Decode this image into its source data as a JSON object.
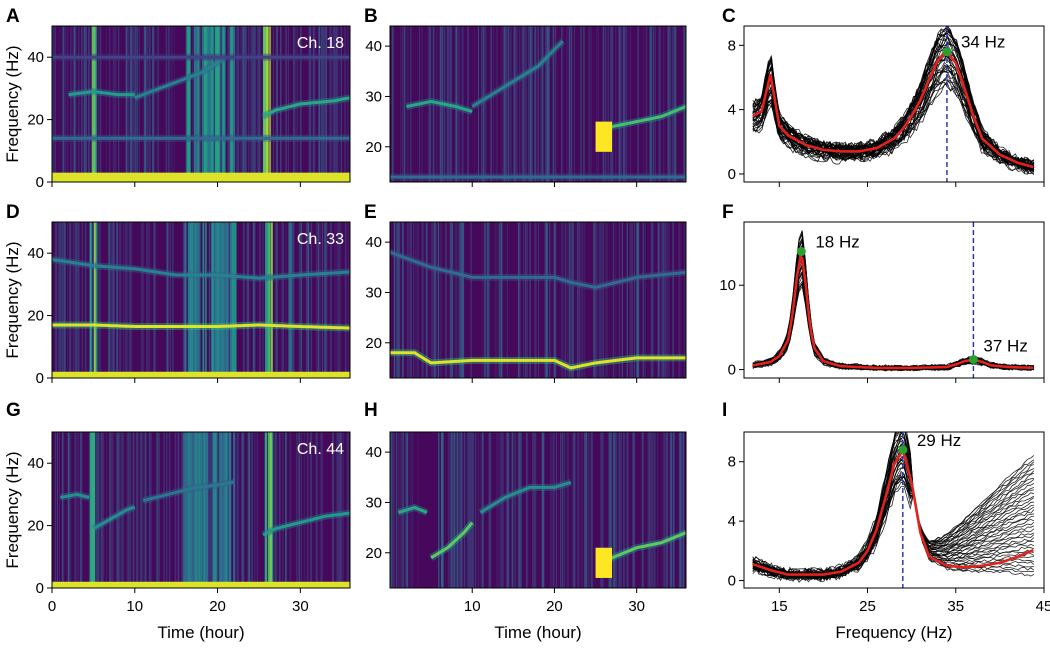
{
  "chart_data": [
    {
      "panel": "A",
      "type": "heatmap",
      "channel_label": "Ch. 18",
      "xlabel": "",
      "ylabel": "Frequency (Hz)",
      "xlim": [
        0,
        36
      ],
      "ylim": [
        0,
        50
      ],
      "xticks": [
        0,
        10,
        20,
        30
      ],
      "yticks": [
        0,
        20,
        40
      ],
      "xticklabels": [],
      "yticklabels": [
        "0",
        "20",
        "40"
      ],
      "colormap": "viridis",
      "ridges": [
        {
          "x": [
            2,
            5,
            8,
            10
          ],
          "y": [
            28,
            29,
            28,
            28
          ],
          "intensity": 0.55
        },
        {
          "x": [
            10,
            14,
            18,
            21
          ],
          "y": [
            27,
            31,
            35,
            40
          ],
          "intensity": 0.45
        },
        {
          "x": [
            25.5,
            27,
            30,
            34,
            36
          ],
          "y": [
            21,
            23,
            25,
            26,
            27
          ],
          "intensity": 0.6
        },
        {
          "x": [
            0,
            36
          ],
          "y": [
            14,
            14
          ],
          "intensity": 0.35
        },
        {
          "x": [
            0,
            36
          ],
          "y": [
            40,
            40
          ],
          "intensity": 0.2
        }
      ],
      "bright_bands": [
        {
          "x": [
            25.3,
            26.8
          ],
          "intensity": 1.0
        },
        {
          "x": [
            16,
            22
          ],
          "intensity": 0.6
        },
        {
          "x": [
            4.6,
            5.1
          ],
          "intensity": 0.9
        }
      ],
      "floor_band": {
        "y": [
          0,
          3
        ],
        "intensity": 0.95
      }
    },
    {
      "panel": "B",
      "type": "heatmap",
      "xlabel": "",
      "ylabel": "",
      "xlim": [
        0,
        36
      ],
      "ylim": [
        13,
        44
      ],
      "xticks": [
        10,
        20,
        30
      ],
      "yticks": [
        20,
        30,
        40
      ],
      "xticklabels": [],
      "yticklabels": [
        "20",
        "30",
        "40"
      ],
      "colormap": "viridis",
      "ridges": [
        {
          "x": [
            2,
            5,
            8,
            10
          ],
          "y": [
            28,
            29,
            28,
            27
          ],
          "intensity": 0.6
        },
        {
          "x": [
            10,
            14,
            18,
            21
          ],
          "y": [
            28,
            32,
            36,
            41
          ],
          "intensity": 0.45
        },
        {
          "x": [
            25.5,
            27,
            30,
            33,
            36
          ],
          "y": [
            21,
            24,
            25,
            26,
            28
          ],
          "intensity": 0.7
        },
        {
          "x": [
            0,
            36
          ],
          "y": [
            14,
            14
          ],
          "intensity": 0.35
        }
      ],
      "bright_blobs": [
        {
          "x": 26,
          "y": 22,
          "w": 2,
          "h": 6,
          "intensity": 1.0
        }
      ],
      "bright_bands": []
    },
    {
      "panel": "C",
      "type": "line",
      "peak_label": "34 Hz",
      "xlabel": "",
      "ylabel": "",
      "xlim": [
        11,
        45
      ],
      "ylim": [
        -0.5,
        9.2
      ],
      "xticks": [
        15,
        25,
        35,
        45
      ],
      "yticks": [
        0,
        4,
        8
      ],
      "xticklabels": [],
      "yticklabels": [
        "0",
        "4",
        "8"
      ],
      "vline": 34,
      "peak": {
        "x": 34,
        "y": 7.6
      },
      "mean_curve": {
        "x": [
          12,
          13,
          14,
          15,
          16,
          18,
          20,
          22,
          24,
          26,
          28,
          29,
          30,
          31,
          32,
          33,
          34,
          35,
          36,
          37,
          38,
          40,
          42,
          44
        ],
        "y": [
          3.6,
          3.9,
          6.2,
          3.0,
          2.4,
          1.8,
          1.5,
          1.4,
          1.4,
          1.6,
          2.2,
          2.8,
          3.6,
          4.6,
          5.9,
          7.1,
          7.6,
          6.9,
          5.3,
          3.6,
          2.2,
          1.2,
          0.7,
          0.4
        ]
      },
      "series_count": 40,
      "series_spread": 1.1,
      "colors": {
        "traces": "#000000",
        "mean": "#e3211d",
        "vline": "#1f2ea8",
        "peak": "#2ca02c"
      }
    },
    {
      "panel": "D",
      "type": "heatmap",
      "channel_label": "Ch. 33",
      "xlabel": "",
      "ylabel": "Frequency (Hz)",
      "xlim": [
        0,
        36
      ],
      "ylim": [
        0,
        50
      ],
      "xticks": [
        0,
        10,
        20,
        30
      ],
      "yticks": [
        0,
        20,
        40
      ],
      "xticklabels": [],
      "yticklabels": [
        "0",
        "20",
        "40"
      ],
      "colormap": "viridis",
      "ridges": [
        {
          "x": [
            0,
            5,
            10,
            15,
            20,
            25,
            30,
            36
          ],
          "y": [
            17,
            17,
            16.5,
            16.5,
            16.5,
            17,
            16.5,
            16
          ],
          "intensity": 0.95
        },
        {
          "x": [
            0,
            5,
            10,
            15,
            20,
            25,
            30,
            36
          ],
          "y": [
            38,
            36,
            35,
            33,
            33,
            32,
            33,
            34
          ],
          "intensity": 0.45
        }
      ],
      "bright_bands": [
        {
          "x": [
            4.5,
            5.2
          ],
          "intensity": 0.9
        },
        {
          "x": [
            16,
            22
          ],
          "intensity": 0.55
        },
        {
          "x": [
            25.5,
            26.5
          ],
          "intensity": 0.85
        }
      ],
      "floor_band": {
        "y": [
          0,
          2
        ],
        "intensity": 0.95
      }
    },
    {
      "panel": "E",
      "type": "heatmap",
      "xlabel": "",
      "ylabel": "",
      "xlim": [
        0,
        36
      ],
      "ylim": [
        13,
        44
      ],
      "xticks": [
        10,
        20,
        30
      ],
      "yticks": [
        20,
        30,
        40
      ],
      "xticklabels": [],
      "yticklabels": [
        "20",
        "30",
        "40"
      ],
      "colormap": "viridis",
      "ridges": [
        {
          "x": [
            0,
            3,
            5,
            10,
            15,
            20,
            22,
            25,
            30,
            36
          ],
          "y": [
            18,
            18,
            16,
            16.5,
            16.5,
            16.5,
            15,
            16,
            17,
            17
          ],
          "intensity": 0.95
        },
        {
          "x": [
            0,
            5,
            10,
            15,
            20,
            22,
            25,
            30,
            36
          ],
          "y": [
            38,
            35,
            33,
            33,
            33,
            32,
            31,
            33,
            34
          ],
          "intensity": 0.35
        }
      ],
      "bright_blobs": [],
      "bright_bands": []
    },
    {
      "panel": "F",
      "type": "line",
      "peak_label": "18 Hz",
      "peak_label_2": "37 Hz",
      "xlabel": "",
      "ylabel": "",
      "xlim": [
        11,
        45
      ],
      "ylim": [
        -1,
        17.5
      ],
      "xticks": [
        15,
        25,
        35,
        45
      ],
      "yticks": [
        0,
        10
      ],
      "xticklabels": [],
      "yticklabels": [
        "0",
        "10"
      ],
      "vline": 37,
      "peak": {
        "x": 17.5,
        "y": 14
      },
      "peak2": {
        "x": 37,
        "y": 1.2
      },
      "mean_curve": {
        "x": [
          12,
          14,
          15,
          16,
          16.5,
          17,
          17.5,
          18,
          18.5,
          19,
          20,
          22,
          26,
          30,
          34,
          35,
          36,
          37,
          38,
          39,
          41,
          44
        ],
        "y": [
          0.5,
          0.9,
          1.6,
          3.5,
          6.5,
          11,
          14,
          10,
          5,
          2.5,
          1.0,
          0.4,
          0.2,
          0.2,
          0.3,
          0.6,
          1.0,
          1.2,
          0.9,
          0.5,
          0.3,
          0.2
        ]
      },
      "series_count": 35,
      "series_spread": 0.8,
      "colors": {
        "traces": "#000000",
        "mean": "#e3211d",
        "vline": "#1f2ea8",
        "peak": "#2ca02c"
      }
    },
    {
      "panel": "G",
      "type": "heatmap",
      "channel_label": "Ch. 44",
      "xlabel": "Time (hour)",
      "ylabel": "Frequency (Hz)",
      "xlim": [
        0,
        36
      ],
      "ylim": [
        0,
        50
      ],
      "xticks": [
        0,
        10,
        20,
        30
      ],
      "yticks": [
        0,
        20,
        40
      ],
      "xticklabels": [
        "0",
        "10",
        "20",
        "30"
      ],
      "yticklabels": [
        "0",
        "20",
        "40"
      ],
      "colormap": "viridis",
      "ridges": [
        {
          "x": [
            1,
            3,
            4.5
          ],
          "y": [
            29,
            30,
            29
          ],
          "intensity": 0.5
        },
        {
          "x": [
            5,
            7,
            9,
            10
          ],
          "y": [
            19,
            22,
            25,
            26
          ],
          "intensity": 0.5
        },
        {
          "x": [
            11,
            14,
            17,
            20,
            22
          ],
          "y": [
            28,
            30,
            32,
            33,
            34
          ],
          "intensity": 0.4
        },
        {
          "x": [
            25.5,
            27,
            30,
            33,
            36
          ],
          "y": [
            17,
            19,
            21,
            23,
            24
          ],
          "intensity": 0.55
        }
      ],
      "bright_bands": [
        {
          "x": [
            4.5,
            5.2
          ],
          "intensity": 0.9
        },
        {
          "x": [
            16,
            22
          ],
          "intensity": 0.5
        },
        {
          "x": [
            25.5,
            26.5
          ],
          "intensity": 0.85
        }
      ],
      "floor_band": {
        "y": [
          0,
          2
        ],
        "intensity": 0.95
      }
    },
    {
      "panel": "H",
      "type": "heatmap",
      "xlabel": "Time (hour)",
      "ylabel": "",
      "xlim": [
        0,
        36
      ],
      "ylim": [
        13,
        44
      ],
      "xticks": [
        10,
        20,
        30
      ],
      "yticks": [
        20,
        30,
        40
      ],
      "xticklabels": [
        "10",
        "20",
        "30"
      ],
      "yticklabels": [
        "20",
        "30",
        "40"
      ],
      "colormap": "viridis",
      "ridges": [
        {
          "x": [
            1,
            3,
            4.5
          ],
          "y": [
            28,
            29,
            28
          ],
          "intensity": 0.6
        },
        {
          "x": [
            5,
            7,
            9,
            10
          ],
          "y": [
            19,
            21,
            24,
            26
          ],
          "intensity": 0.75
        },
        {
          "x": [
            11,
            14,
            17,
            20,
            22
          ],
          "y": [
            28,
            31,
            33,
            33,
            34
          ],
          "intensity": 0.5
        },
        {
          "x": [
            25.5,
            27,
            30,
            33,
            36
          ],
          "y": [
            17,
            19,
            21,
            22,
            24
          ],
          "intensity": 0.75
        }
      ],
      "bright_blobs": [
        {
          "x": 26,
          "y": 18,
          "w": 2,
          "h": 6,
          "intensity": 1.0
        }
      ],
      "bright_bands": []
    },
    {
      "panel": "I",
      "type": "line",
      "peak_label": "29 Hz",
      "xlabel": "Frequency (Hz)",
      "ylabel": "",
      "xlim": [
        11,
        45
      ],
      "ylim": [
        -0.5,
        10
      ],
      "xticks": [
        15,
        25,
        35,
        45
      ],
      "yticks": [
        0,
        4,
        8
      ],
      "xticklabels": [
        "15",
        "25",
        "35",
        "45"
      ],
      "yticklabels": [
        "0",
        "4",
        "8"
      ],
      "vline": 29,
      "peak": {
        "x": 29,
        "y": 8.8
      },
      "mean_curve": {
        "x": [
          12,
          14,
          16,
          18,
          20,
          22,
          24,
          25,
          26,
          27,
          28,
          29,
          30,
          31,
          32,
          34,
          36,
          38,
          40,
          42,
          44
        ],
        "y": [
          1.1,
          0.7,
          0.4,
          0.4,
          0.4,
          0.6,
          1.2,
          2.0,
          3.4,
          5.5,
          7.8,
          8.8,
          6.6,
          3.2,
          1.6,
          1.0,
          0.9,
          1.0,
          1.2,
          1.6,
          2.1
        ]
      },
      "series_count": 40,
      "series_spread": 1.0,
      "fan": {
        "from_x": 30,
        "to_x": 44,
        "top_at_end": 8.5,
        "bottom_at_end": 0.3
      },
      "colors": {
        "traces": "#000000",
        "mean": "#e3211d",
        "vline": "#1f2ea8",
        "peak": "#2ca02c"
      }
    }
  ]
}
